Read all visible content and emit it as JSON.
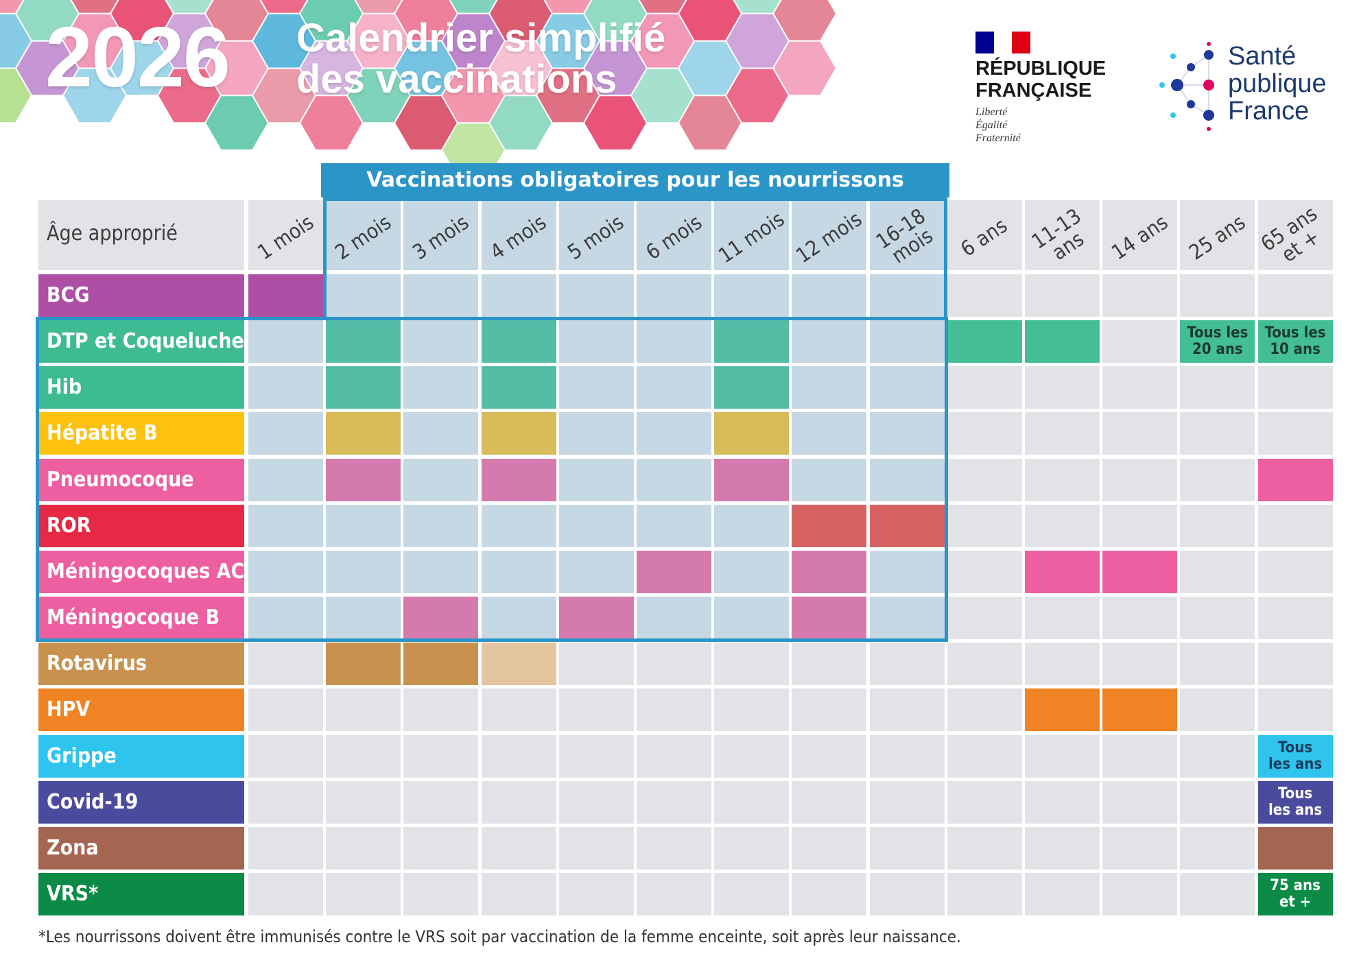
{
  "header": {
    "year": "2026",
    "title_line1": "Calendrier simplifié",
    "title_line2": "des vaccinations"
  },
  "logos": {
    "republique": {
      "line1": "RÉPUBLIQUE",
      "line2": "FRANÇAISE",
      "motto": [
        "Liberté",
        "Égalité",
        "Fraternité"
      ]
    },
    "spf": {
      "line1": "Santé",
      "line2": "publique",
      "line3": "France"
    }
  },
  "mandatory_banner": "Vaccinations obligatoires pour les nourrissons",
  "corner_label": "Âge approprié",
  "ages": [
    "1 mois",
    "2 mois",
    "3 mois",
    "4 mois",
    "5 mois",
    "6 mois",
    "11 mois",
    "12 mois",
    "16-18\nmois",
    "6 ans",
    "11-13\nans",
    "14 ans",
    "25 ans",
    "65 ans\net +"
  ],
  "vaccines": [
    {
      "name": "BCG",
      "color": "#ad4fa4"
    },
    {
      "name": "DTP et Coqueluche",
      "color": "#3fbb93"
    },
    {
      "name": "Hib",
      "color": "#3fbb93"
    },
    {
      "name": "Hépatite B",
      "color": "#fdc20d"
    },
    {
      "name": "Pneumocoque",
      "color": "#ee5fa1"
    },
    {
      "name": "ROR",
      "color": "#e62a45"
    },
    {
      "name": "Méningocoques ACWY",
      "color": "#ee5fa1"
    },
    {
      "name": "Méningocoque B",
      "color": "#ee5fa1"
    },
    {
      "name": "Rotavirus",
      "color": "#c8914e"
    },
    {
      "name": "HPV",
      "color": "#f08323"
    },
    {
      "name": "Grippe",
      "color": "#2ec4ee"
    },
    {
      "name": "Covid-19",
      "color": "#4b4b9d"
    },
    {
      "name": "Zona",
      "color": "#a56651"
    },
    {
      "name": "VRS*",
      "color": "#0c8b47"
    }
  ],
  "cell_colors": {
    "empty": "#e1e3e6",
    "mandatory_empty": "#c6d8e3",
    "bcg": "#ad4fa4",
    "dtp": "#54bda5",
    "dtp_adult": "#43be97",
    "hepb": "#d8bc59",
    "pneumo": "#d57aad",
    "pneumo_adult": "#ee5fa1",
    "ror": "#d66262",
    "mening": "#d57aad",
    "mening_teen": "#ee5fa1",
    "rota": "#c8914e",
    "rota_light": "#e3c5a0",
    "hpv": "#f08323",
    "grippe": "#2ec4ee",
    "covid": "#4b4b9d",
    "zona": "#a56651",
    "vrs": "#0c8b47"
  },
  "schedule": [
    {
      "row": 0,
      "col": 0,
      "color": "bcg"
    },
    {
      "row": 1,
      "col": 1,
      "color": "dtp"
    },
    {
      "row": 1,
      "col": 3,
      "color": "dtp"
    },
    {
      "row": 1,
      "col": 6,
      "color": "dtp"
    },
    {
      "row": 1,
      "col": 9,
      "color": "dtp_adult"
    },
    {
      "row": 1,
      "col": 10,
      "color": "dtp_adult"
    },
    {
      "row": 1,
      "col": 12,
      "color": "dtp_adult",
      "text": "Tous les\n20 ans",
      "text_color": "#1f3b2e"
    },
    {
      "row": 1,
      "col": 13,
      "color": "dtp_adult",
      "text": "Tous les\n10 ans",
      "text_color": "#1f3b2e"
    },
    {
      "row": 2,
      "col": 1,
      "color": "dtp"
    },
    {
      "row": 2,
      "col": 3,
      "color": "dtp"
    },
    {
      "row": 2,
      "col": 6,
      "color": "dtp"
    },
    {
      "row": 3,
      "col": 1,
      "color": "hepb"
    },
    {
      "row": 3,
      "col": 3,
      "color": "hepb"
    },
    {
      "row": 3,
      "col": 6,
      "color": "hepb"
    },
    {
      "row": 4,
      "col": 1,
      "color": "pneumo"
    },
    {
      "row": 4,
      "col": 3,
      "color": "pneumo"
    },
    {
      "row": 4,
      "col": 6,
      "color": "pneumo"
    },
    {
      "row": 4,
      "col": 13,
      "color": "pneumo_adult"
    },
    {
      "row": 5,
      "col": 7,
      "color": "ror"
    },
    {
      "row": 5,
      "col": 8,
      "color": "ror"
    },
    {
      "row": 6,
      "col": 5,
      "color": "mening"
    },
    {
      "row": 6,
      "col": 7,
      "color": "mening"
    },
    {
      "row": 6,
      "col": 10,
      "color": "mening_teen"
    },
    {
      "row": 6,
      "col": 11,
      "color": "mening_teen"
    },
    {
      "row": 7,
      "col": 2,
      "color": "mening"
    },
    {
      "row": 7,
      "col": 4,
      "color": "mening"
    },
    {
      "row": 7,
      "col": 7,
      "color": "mening"
    },
    {
      "row": 8,
      "col": 1,
      "color": "rota"
    },
    {
      "row": 8,
      "col": 2,
      "color": "rota"
    },
    {
      "row": 8,
      "col": 3,
      "color": "rota_light"
    },
    {
      "row": 9,
      "col": 10,
      "color": "hpv"
    },
    {
      "row": 9,
      "col": 11,
      "color": "hpv"
    },
    {
      "row": 10,
      "col": 13,
      "color": "grippe",
      "text": "Tous\nles ans",
      "text_color": "#1b3d5c"
    },
    {
      "row": 11,
      "col": 13,
      "color": "covid",
      "text": "Tous\nles ans",
      "text_color": "#ffffff"
    },
    {
      "row": 12,
      "col": 13,
      "color": "zona"
    },
    {
      "row": 13,
      "col": 13,
      "color": "vrs",
      "text": "75 ans\net +",
      "text_color": "#ffffff"
    }
  ],
  "footnote": "*Les nourrissons doivent être immunisés contre le VRS soit par vaccination de la femme enceinte, soit après leur naissance."
}
